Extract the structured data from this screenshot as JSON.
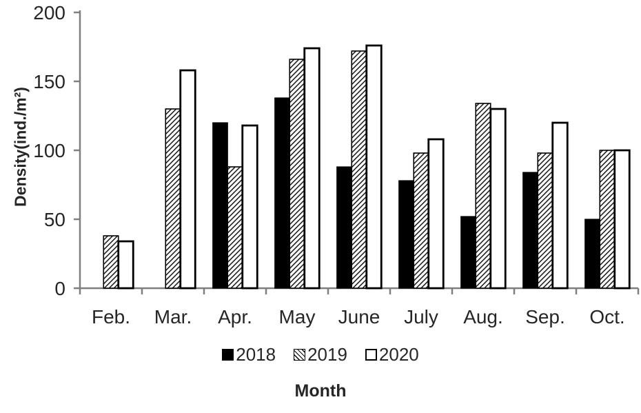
{
  "chart_data": {
    "type": "bar",
    "title": "",
    "xlabel": "Month",
    "ylabel": "Density(ind./m²)",
    "ylim": [
      0,
      200
    ],
    "yticks": [
      0,
      50,
      100,
      150,
      200
    ],
    "grid": false,
    "legend_position": "bottom",
    "categories": [
      "Feb.",
      "Mar.",
      "Apr.",
      "May",
      "June",
      "July",
      "Aug.",
      "Sep.",
      "Oct."
    ],
    "series": [
      {
        "name": "2018",
        "style": "solid-black",
        "values": [
          0,
          0,
          120,
          138,
          88,
          78,
          52,
          84,
          50
        ]
      },
      {
        "name": "2019",
        "style": "hatched",
        "values": [
          38,
          130,
          88,
          166,
          172,
          98,
          134,
          98,
          100
        ]
      },
      {
        "name": "2020",
        "style": "white-outline",
        "values": [
          34,
          158,
          118,
          174,
          176,
          108,
          130,
          120,
          100
        ]
      }
    ]
  },
  "colors": {
    "axis": "#7f7f7f",
    "text": "#262626",
    "bar_fill": "#000000",
    "bar_outline": "#000000",
    "background": "#ffffff"
  }
}
